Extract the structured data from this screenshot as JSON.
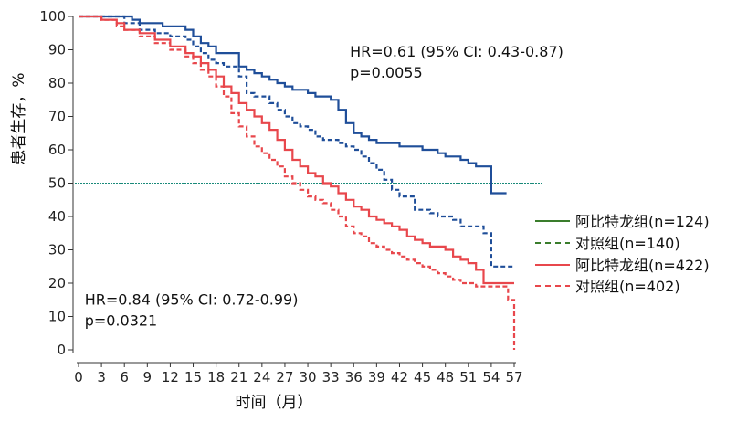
{
  "chart_data": {
    "type": "line",
    "chart_style": "kaplan-meier",
    "xlabel": "时间（月）",
    "ylabel": "患者生存，%",
    "xlim": [
      0,
      57
    ],
    "ylim": [
      0,
      100
    ],
    "xticks": [
      0,
      3,
      6,
      9,
      12,
      15,
      18,
      21,
      24,
      27,
      30,
      33,
      36,
      39,
      42,
      45,
      48,
      51,
      54,
      57
    ],
    "yticks": [
      0,
      10,
      20,
      30,
      40,
      50,
      60,
      70,
      80,
      90,
      100
    ],
    "reference_line": {
      "y": 50,
      "color": "#1a8a7a"
    },
    "annotations": [
      {
        "lines": [
          "HR=0.61 (95% CI: 0.43-0.87)",
          "p=0.0055"
        ],
        "anchor": [
          35.5,
          88
        ]
      },
      {
        "lines": [
          "HR=0.84 (95% CI: 0.72-0.99)",
          "p=0.0321"
        ],
        "anchor": [
          0.8,
          13.5
        ]
      }
    ],
    "series": [
      {
        "name": "阿比特龙组(n=124)",
        "color": "#1f4e99",
        "dash": "solid",
        "legend_color": "#3a7d2c",
        "x": [
          0,
          7,
          8,
          10,
          11,
          13,
          14,
          15,
          16,
          17,
          18,
          19,
          20,
          21,
          22,
          23,
          24,
          25,
          26,
          27,
          28,
          29,
          30,
          31,
          32,
          33,
          34,
          35,
          36,
          37,
          38,
          39,
          40,
          41,
          42,
          43,
          44,
          45,
          46,
          47,
          48,
          49,
          50,
          51,
          52,
          53,
          54,
          55,
          56
        ],
        "values": [
          100,
          99,
          98,
          98,
          97,
          97,
          96,
          94,
          92,
          91,
          89,
          89,
          89,
          85,
          84,
          83,
          82,
          81,
          80,
          79,
          78,
          78,
          77,
          76,
          76,
          75,
          72,
          68,
          65,
          64,
          63,
          62,
          62,
          62,
          61,
          61,
          61,
          60,
          60,
          59,
          58,
          58,
          57,
          56,
          55,
          55,
          47,
          47,
          47
        ]
      },
      {
        "name": "对照组(n=140)",
        "color": "#1f4e99",
        "dash": "dashed",
        "legend_color": "#3a7d2c",
        "x": [
          0,
          6,
          8,
          10,
          12,
          14,
          15,
          16,
          17,
          18,
          19,
          20,
          21,
          22,
          23,
          24,
          25,
          26,
          27,
          28,
          29,
          30,
          31,
          32,
          33,
          34,
          35,
          36,
          37,
          38,
          39,
          40,
          41,
          42,
          43,
          44,
          45,
          46,
          47,
          48,
          49,
          50,
          51,
          52,
          53,
          54,
          55,
          56,
          57
        ],
        "values": [
          100,
          98,
          96,
          95,
          94,
          93,
          91,
          89,
          87,
          86,
          85,
          85,
          82,
          77,
          76,
          76,
          74,
          72,
          70,
          68,
          67,
          66,
          64,
          63,
          63,
          62,
          61,
          60,
          58,
          56,
          54,
          51,
          48,
          46,
          46,
          42,
          42,
          41,
          40,
          40,
          39,
          37,
          37,
          37,
          35,
          25,
          25,
          25,
          25
        ]
      },
      {
        "name": "阿比特龙组(n=422)",
        "color": "#e8474c",
        "dash": "solid",
        "legend_color": "#e8474c",
        "x": [
          0,
          3,
          5,
          6,
          8,
          10,
          12,
          14,
          15,
          16,
          17,
          18,
          19,
          20,
          21,
          22,
          23,
          24,
          25,
          26,
          27,
          28,
          29,
          30,
          31,
          32,
          33,
          34,
          35,
          36,
          37,
          38,
          39,
          40,
          41,
          42,
          43,
          44,
          45,
          46,
          47,
          48,
          49,
          50,
          51,
          52,
          53,
          54,
          55,
          56,
          57
        ],
        "values": [
          100,
          99,
          98,
          96,
          95,
          93,
          91,
          89,
          88,
          86,
          84,
          82,
          79,
          77,
          74,
          72,
          70,
          68,
          66,
          63,
          60,
          57,
          55,
          53,
          52,
          50,
          49,
          47,
          45,
          43,
          42,
          40,
          39,
          38,
          37,
          36,
          34,
          33,
          32,
          31,
          31,
          30,
          28,
          27,
          26,
          24,
          20,
          20,
          20,
          20,
          20
        ]
      },
      {
        "name": "对照组(n=402)",
        "color": "#e8474c",
        "dash": "dashed",
        "legend_color": "#e8474c",
        "x": [
          0,
          3,
          5,
          6,
          8,
          10,
          12,
          14,
          15,
          16,
          17,
          18,
          19,
          20,
          21,
          22,
          23,
          24,
          25,
          26,
          27,
          28,
          29,
          30,
          31,
          32,
          33,
          34,
          35,
          36,
          37,
          38,
          39,
          40,
          41,
          42,
          43,
          44,
          45,
          46,
          47,
          48,
          49,
          50,
          51,
          52,
          53,
          54,
          55,
          56,
          56.2,
          57,
          57
        ],
        "values": [
          100,
          99,
          97,
          96,
          94,
          92,
          90,
          88,
          86,
          84,
          82,
          79,
          76,
          71,
          67,
          64,
          61,
          59,
          57,
          55,
          52,
          50,
          48,
          46,
          45,
          44,
          42,
          40,
          37,
          35,
          34,
          32,
          31,
          30,
          29,
          28,
          27,
          26,
          25,
          24,
          23,
          22,
          21,
          20,
          20,
          19,
          19,
          19,
          19,
          19,
          15,
          14,
          0
        ]
      }
    ]
  }
}
